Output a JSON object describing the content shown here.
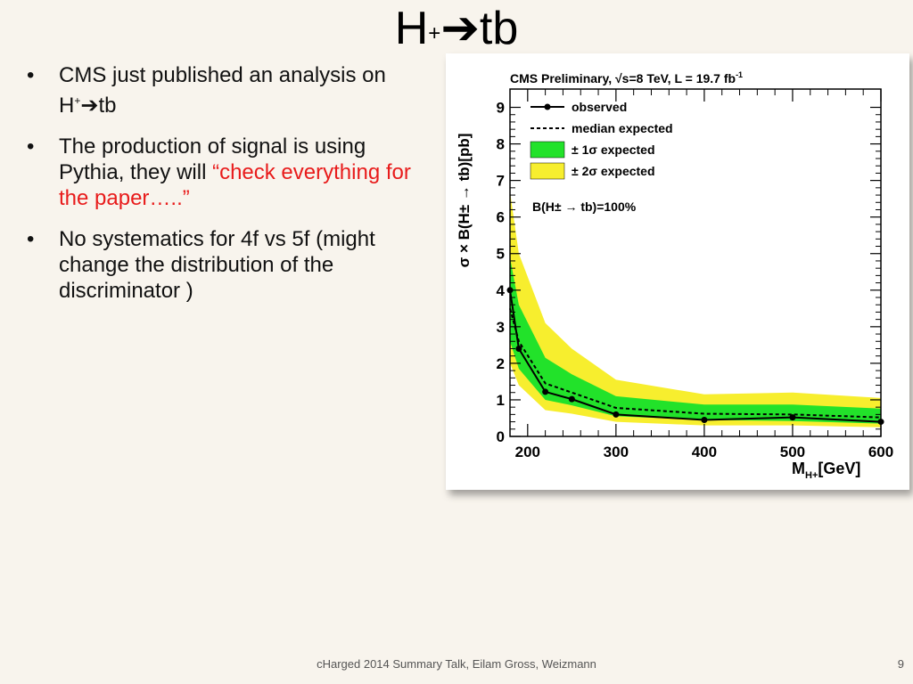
{
  "slide": {
    "title_main": "H",
    "title_sup": "+",
    "title_arrow": "➔",
    "title_end": "tb",
    "bullets": [
      {
        "marker": "•",
        "text": "CMS just published an analysis on H",
        "sup": "+",
        "arrow": "➔",
        "end": "tb"
      },
      {
        "marker": "•",
        "text": "The production of signal is using Pythia, they will ",
        "highlight": "“check everything for the paper…..”"
      },
      {
        "marker": "•",
        "text": "No systematics for 4f vs 5f (might change the distribution of the discriminator )"
      }
    ],
    "footer": "cHarged 2014 Summary Talk, Eilam Gross, Weizmann",
    "page_number": "9"
  },
  "colors": {
    "band1": "#22e22a",
    "band2": "#f7ee2e",
    "highlight": "#e81b1b"
  },
  "chart_data": {
    "type": "line",
    "header": "CMS Preliminary, √s=8 TeV, L = 19.7 fb",
    "header_sup": "-1",
    "ylabel": "σ × B(H± → tb)[pb]",
    "xlabel": "M",
    "xlabel_sub": "H+",
    "xlabel_unit": "[GeV]",
    "annotation": "B(H± → tb)=100%",
    "xlim": [
      180,
      600
    ],
    "ylim": [
      0,
      9.5
    ],
    "x_ticks": [
      200,
      300,
      400,
      500,
      600
    ],
    "y_ticks": [
      0,
      1,
      2,
      3,
      4,
      5,
      6,
      7,
      8,
      9
    ],
    "legend": [
      {
        "name": "observed",
        "style": "line-marker"
      },
      {
        "name": "median expected",
        "style": "dashed"
      },
      {
        "name": "± 1σ expected",
        "style": "band1"
      },
      {
        "name": "± 2σ expected",
        "style": "band2"
      }
    ],
    "x": [
      180,
      190,
      220,
      250,
      300,
      400,
      500,
      600
    ],
    "observed": [
      4.0,
      2.4,
      1.22,
      1.02,
      0.6,
      0.45,
      0.52,
      0.4
    ],
    "expected": [
      3.5,
      2.6,
      1.45,
      1.2,
      0.78,
      0.62,
      0.6,
      0.52
    ],
    "band1_low": [
      2.6,
      1.85,
      1.0,
      0.85,
      0.55,
      0.45,
      0.42,
      0.35
    ],
    "band1_high": [
      4.9,
      3.6,
      2.15,
      1.7,
      1.1,
      0.87,
      0.87,
      0.76
    ],
    "band2_low": [
      2.0,
      1.4,
      0.72,
      0.62,
      0.4,
      0.3,
      0.3,
      0.25
    ],
    "band2_high": [
      6.7,
      5.0,
      3.1,
      2.4,
      1.55,
      1.15,
      1.2,
      1.05
    ]
  }
}
